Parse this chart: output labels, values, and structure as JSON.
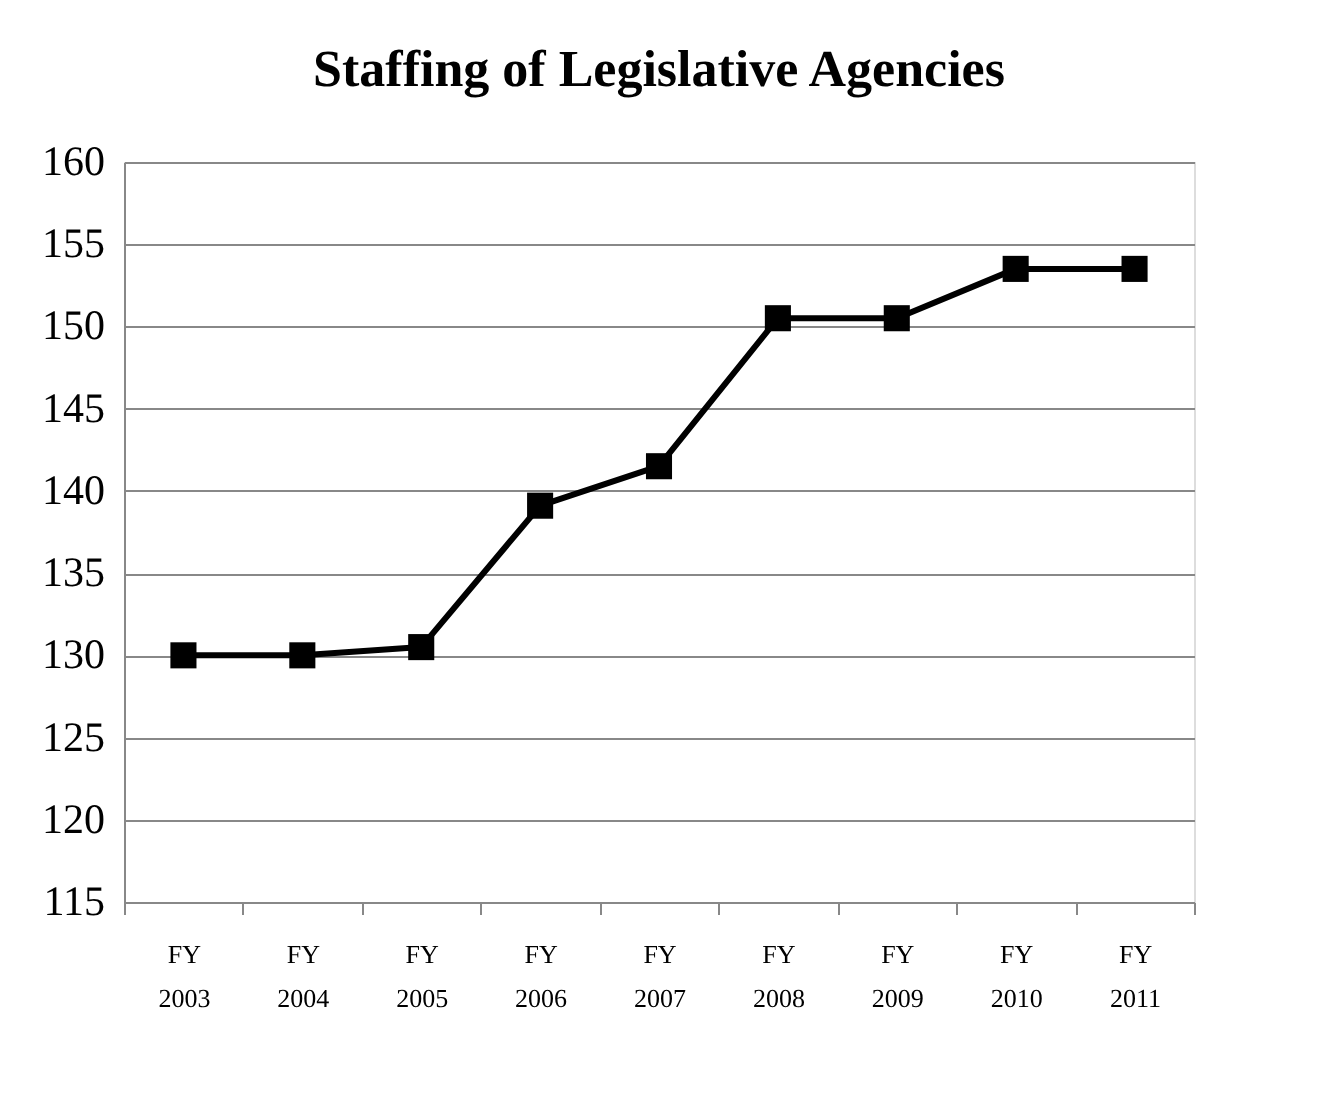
{
  "chart_data": {
    "type": "line",
    "title": "Staffing of Legislative Agencies",
    "categories": [
      "FY 2003",
      "FY 2004",
      "FY 2005",
      "FY 2006",
      "FY 2007",
      "FY 2008",
      "FY 2009",
      "FY 2010",
      "FY 2011"
    ],
    "series": [
      {
        "color": "#000000",
        "values": [
          130,
          130,
          130.5,
          139.1,
          141.5,
          150.5,
          150.5,
          153.5,
          153.5
        ]
      }
    ],
    "ylim": [
      115,
      160
    ],
    "yticks": [
      115,
      120,
      125,
      130,
      135,
      140,
      145,
      150,
      155,
      160
    ],
    "grid": "y",
    "legend": false,
    "marker": "square",
    "line_style": "solid"
  }
}
